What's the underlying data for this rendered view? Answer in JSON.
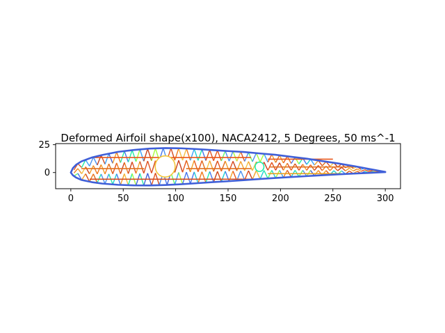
{
  "chart_data": {
    "type": "line",
    "title": "Deformed Airfoil shape(x100), NACA2412, 5 Degrees, 50 ms^-1",
    "xlabel": "",
    "ylabel": "",
    "xlim": [
      -14.5,
      314.5
    ],
    "ylim": [
      -14.5,
      26
    ],
    "x_ticks": [
      0,
      50,
      100,
      150,
      200,
      250,
      300
    ],
    "x_tick_labels": [
      "0",
      "50",
      "100",
      "150",
      "200",
      "250",
      "300"
    ],
    "y_ticks": [
      0,
      25
    ],
    "y_tick_labels": [
      "0",
      "25"
    ],
    "grid": false,
    "legend": "none",
    "aspect": "equal",
    "airfoil": {
      "chord": 300,
      "upper_surface": [
        [
          0,
          0
        ],
        [
          2,
          4
        ],
        [
          5,
          7
        ],
        [
          10,
          10
        ],
        [
          20,
          13.5
        ],
        [
          30,
          15.8
        ],
        [
          45,
          18.6
        ],
        [
          60,
          20.3
        ],
        [
          75,
          21.5
        ],
        [
          90,
          22
        ],
        [
          105,
          21.8
        ],
        [
          120,
          21.1
        ],
        [
          135,
          20.2
        ],
        [
          150,
          19.3
        ],
        [
          165,
          18.5
        ],
        [
          180,
          17.2
        ],
        [
          195,
          16
        ],
        [
          210,
          14.2
        ],
        [
          225,
          12.5
        ],
        [
          240,
          10.3
        ],
        [
          255,
          8.2
        ],
        [
          270,
          5.8
        ],
        [
          285,
          3.2
        ],
        [
          300,
          0.6
        ]
      ],
      "lower_surface": [
        [
          0,
          0
        ],
        [
          2,
          -2.5
        ],
        [
          5,
          -4.5
        ],
        [
          10,
          -6.6
        ],
        [
          20,
          -8.6
        ],
        [
          30,
          -9.9
        ],
        [
          45,
          -11
        ],
        [
          60,
          -11.5
        ],
        [
          75,
          -11.6
        ],
        [
          90,
          -11.2
        ],
        [
          105,
          -10.5
        ],
        [
          120,
          -9.6
        ],
        [
          135,
          -8.6
        ],
        [
          150,
          -7.8
        ],
        [
          165,
          -6.8
        ],
        [
          180,
          -5.8
        ],
        [
          195,
          -4.9
        ],
        [
          210,
          -4
        ],
        [
          225,
          -3.2
        ],
        [
          240,
          -2.4
        ],
        [
          255,
          -1.6
        ],
        [
          270,
          -0.9
        ],
        [
          285,
          -0.3
        ],
        [
          300,
          0.4
        ]
      ],
      "holes": [
        {
          "cx": 90,
          "cy": 5.5,
          "r": 9.5
        },
        {
          "cx": 180,
          "cy": 5.2,
          "r": 4.2
        }
      ],
      "rows": [
        {
          "y": 13.5,
          "x0": 20,
          "x1": 172,
          "color": "#e8561a"
        },
        {
          "y": 3.5,
          "x0": 10,
          "x1": 70,
          "color": "#e07020"
        },
        {
          "y": 3.5,
          "x0": 110,
          "x1": 172,
          "color": "#e07020"
        },
        {
          "y": -6,
          "x0": 18,
          "x1": 172,
          "color": "#d44b1c"
        },
        {
          "y": 12,
          "x0": 188,
          "x1": 250,
          "color": "#e8561a"
        },
        {
          "y": 5,
          "x0": 190,
          "x1": 270,
          "color": "#e07020"
        },
        {
          "y": -1,
          "x0": 188,
          "x1": 258,
          "color": "#e8a020"
        }
      ]
    }
  }
}
